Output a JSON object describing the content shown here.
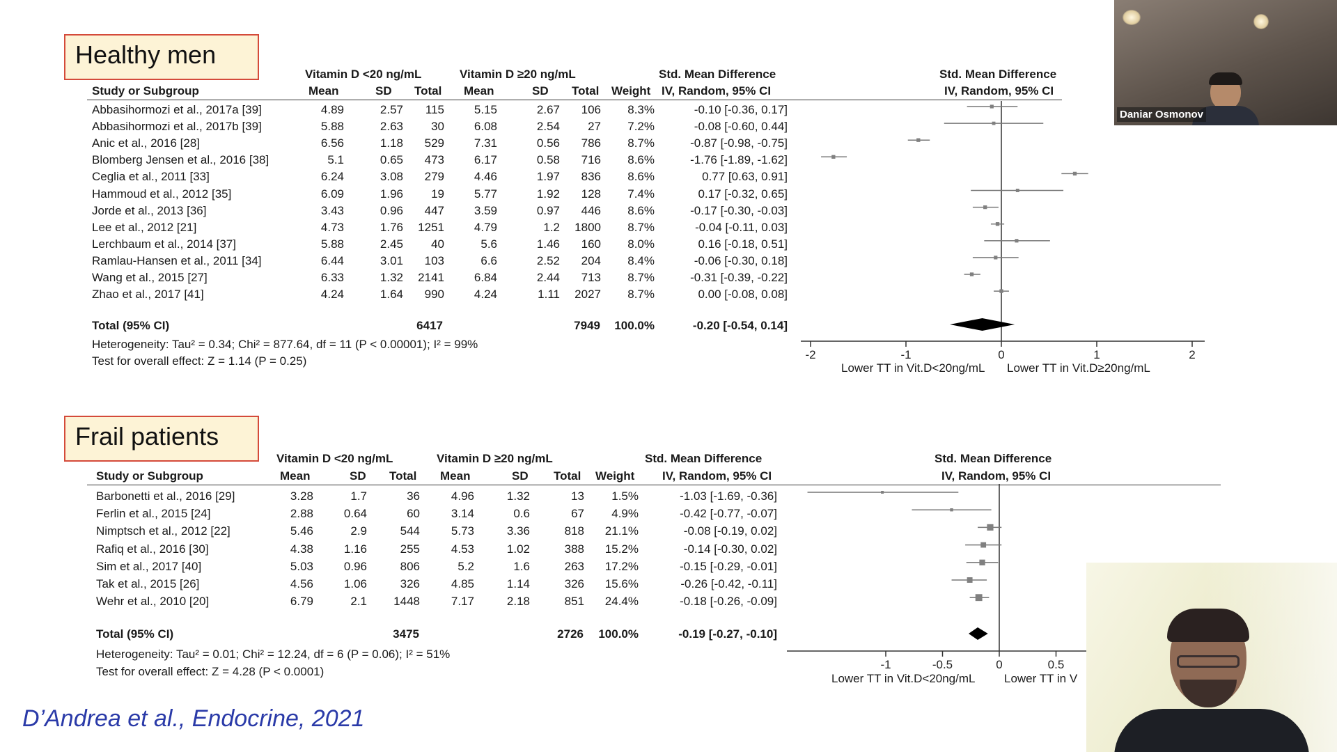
{
  "participant_top": {
    "name": "Daniar Osmonov"
  },
  "citation": "D’Andrea et al., Endocrine, 2021",
  "colors": {
    "label_fill": "#fdf3d6",
    "label_border": "#d44a3a",
    "citation": "#2a3aa8",
    "diamond": "#000000",
    "marker": "#808080"
  },
  "panel1": {
    "label": "Healthy men",
    "group1": "Vitamin D <20 ng/mL",
    "group2": "Vitamin D ≥20 ng/mL",
    "smd_title": "Std. Mean Difference",
    "smd_method": "IV, Random, 95% CI",
    "plot_title": "Std. Mean Difference",
    "plot_method": "IV, Random, 95% CI",
    "col_study": "Study or Subgroup",
    "col_mean": "Mean",
    "col_sd": "SD",
    "col_total": "Total",
    "col_weight": "Weight",
    "rows": [
      {
        "study": "Abbasihormozi et al., 2017a [39]",
        "m1": "4.89",
        "sd1": "2.57",
        "n1": "115",
        "m2": "5.15",
        "sd2": "2.67",
        "n2": "106",
        "w": "8.3%",
        "ci": "-0.10 [-0.36, 0.17]"
      },
      {
        "study": "Abbasihormozi et al., 2017b [39]",
        "m1": "5.88",
        "sd1": "2.63",
        "n1": "30",
        "m2": "6.08",
        "sd2": "2.54",
        "n2": "27",
        "w": "7.2%",
        "ci": "-0.08 [-0.60, 0.44]"
      },
      {
        "study": "Anic et al., 2016 [28]",
        "m1": "6.56",
        "sd1": "1.18",
        "n1": "529",
        "m2": "7.31",
        "sd2": "0.56",
        "n2": "786",
        "w": "8.7%",
        "ci": "-0.87 [-0.98, -0.75]"
      },
      {
        "study": "Blomberg Jensen et al., 2016 [38]",
        "m1": "5.1",
        "sd1": "0.65",
        "n1": "473",
        "m2": "6.17",
        "sd2": "0.58",
        "n2": "716",
        "w": "8.6%",
        "ci": "-1.76 [-1.89, -1.62]"
      },
      {
        "study": "Ceglia et al., 2011 [33]",
        "m1": "6.24",
        "sd1": "3.08",
        "n1": "279",
        "m2": "4.46",
        "sd2": "1.97",
        "n2": "836",
        "w": "8.6%",
        "ci": "0.77 [0.63, 0.91]"
      },
      {
        "study": "Hammoud et al., 2012 [35]",
        "m1": "6.09",
        "sd1": "1.96",
        "n1": "19",
        "m2": "5.77",
        "sd2": "1.92",
        "n2": "128",
        "w": "7.4%",
        "ci": "0.17 [-0.32, 0.65]"
      },
      {
        "study": "Jorde et al., 2013 [36]",
        "m1": "3.43",
        "sd1": "0.96",
        "n1": "447",
        "m2": "3.59",
        "sd2": "0.97",
        "n2": "446",
        "w": "8.6%",
        "ci": "-0.17 [-0.30, -0.03]"
      },
      {
        "study": "Lee et al., 2012 [21]",
        "m1": "4.73",
        "sd1": "1.76",
        "n1": "1251",
        "m2": "4.79",
        "sd2": "1.2",
        "n2": "1800",
        "w": "8.7%",
        "ci": "-0.04 [-0.11, 0.03]"
      },
      {
        "study": "Lerchbaum et al., 2014 [37]",
        "m1": "5.88",
        "sd1": "2.45",
        "n1": "40",
        "m2": "5.6",
        "sd2": "1.46",
        "n2": "160",
        "w": "8.0%",
        "ci": "0.16 [-0.18, 0.51]"
      },
      {
        "study": "Ramlau-Hansen et al., 2011 [34]",
        "m1": "6.44",
        "sd1": "3.01",
        "n1": "103",
        "m2": "6.6",
        "sd2": "2.52",
        "n2": "204",
        "w": "8.4%",
        "ci": "-0.06 [-0.30, 0.18]"
      },
      {
        "study": "Wang et al., 2015 [27]",
        "m1": "6.33",
        "sd1": "1.32",
        "n1": "2141",
        "m2": "6.84",
        "sd2": "2.44",
        "n2": "713",
        "w": "8.7%",
        "ci": "-0.31 [-0.39, -0.22]"
      },
      {
        "study": "Zhao et al., 2017 [41]",
        "m1": "4.24",
        "sd1": "1.64",
        "n1": "990",
        "m2": "4.24",
        "sd2": "1.11",
        "n2": "2027",
        "w": "8.7%",
        "ci": "0.00 [-0.08, 0.08]"
      }
    ],
    "total": {
      "label": "Total (95% CI)",
      "n1": "6417",
      "n2": "7949",
      "w": "100.0%",
      "ci": "-0.20 [-0.54, 0.14]"
    },
    "heterogeneity": "Heterogeneity: Tau² = 0.34; Chi² = 877.64, df = 11 (P < 0.00001); I² = 99%",
    "overall": "Test for overall effect: Z = 1.14 (P = 0.25)",
    "favours_left": "Lower TT in Vit.D<20ng/mL",
    "favours_right": "Lower TT in Vit.D≥20ng/mL"
  },
  "panel2": {
    "label": "Frail patients",
    "group1": "Vitamin D <20 ng/mL",
    "group2": "Vitamin D ≥20 ng/mL",
    "smd_title": "Std. Mean Difference",
    "smd_method": "IV, Random, 95% CI",
    "plot_title": "Std. Mean Difference",
    "plot_method": "IV, Random, 95% CI",
    "col_study": "Study or Subgroup",
    "col_mean": "Mean",
    "col_sd": "SD",
    "col_total": "Total",
    "col_weight": "Weight",
    "rows": [
      {
        "study": "Barbonetti et al., 2016 [29]",
        "m1": "3.28",
        "sd1": "1.7",
        "n1": "36",
        "m2": "4.96",
        "sd2": "1.32",
        "n2": "13",
        "w": "1.5%",
        "ci": "-1.03 [-1.69, -0.36]"
      },
      {
        "study": "Ferlin et al., 2015 [24]",
        "m1": "2.88",
        "sd1": "0.64",
        "n1": "60",
        "m2": "3.14",
        "sd2": "0.6",
        "n2": "67",
        "w": "4.9%",
        "ci": "-0.42 [-0.77, -0.07]"
      },
      {
        "study": "Nimptsch et al., 2012 [22]",
        "m1": "5.46",
        "sd1": "2.9",
        "n1": "544",
        "m2": "5.73",
        "sd2": "3.36",
        "n2": "818",
        "w": "21.1%",
        "ci": "-0.08 [-0.19, 0.02]"
      },
      {
        "study": "Rafiq et al., 2016 [30]",
        "m1": "4.38",
        "sd1": "1.16",
        "n1": "255",
        "m2": "4.53",
        "sd2": "1.02",
        "n2": "388",
        "w": "15.2%",
        "ci": "-0.14 [-0.30, 0.02]"
      },
      {
        "study": "Sim et al., 2017 [40]",
        "m1": "5.03",
        "sd1": "0.96",
        "n1": "806",
        "m2": "5.2",
        "sd2": "1.6",
        "n2": "263",
        "w": "17.2%",
        "ci": "-0.15 [-0.29, -0.01]"
      },
      {
        "study": "Tak et al., 2015 [26]",
        "m1": "4.56",
        "sd1": "1.06",
        "n1": "326",
        "m2": "4.85",
        "sd2": "1.14",
        "n2": "326",
        "w": "15.6%",
        "ci": "-0.26 [-0.42, -0.11]"
      },
      {
        "study": "Wehr et al., 2010 [20]",
        "m1": "6.79",
        "sd1": "2.1",
        "n1": "1448",
        "m2": "7.17",
        "sd2": "2.18",
        "n2": "851",
        "w": "24.4%",
        "ci": "-0.18 [-0.26, -0.09]"
      }
    ],
    "total": {
      "label": "Total (95% CI)",
      "n1": "3475",
      "n2": "2726",
      "w": "100.0%",
      "ci": "-0.19 [-0.27, -0.10]"
    },
    "heterogeneity": "Heterogeneity: Tau² = 0.01; Chi² = 12.24, df = 6 (P = 0.06); I² = 51%",
    "overall": "Test for overall effect: Z = 4.28 (P < 0.0001)",
    "favours_left": "Lower TT in Vit.D<20ng/mL",
    "favours_right": "Lower TT in V"
  },
  "chart_data": [
    {
      "type": "scatter",
      "title": "Std. Mean Difference",
      "subtitle": "IV, Random, 95% CI",
      "xlim": [
        -2,
        2
      ],
      "xticks": [
        "-2",
        "-1",
        "0",
        "1",
        "2"
      ],
      "xtick_values": [
        -2,
        -1,
        0,
        1,
        2
      ],
      "studies": [
        {
          "est": -0.1,
          "lo": -0.36,
          "hi": 0.17,
          "w": 8.3
        },
        {
          "est": -0.08,
          "lo": -0.6,
          "hi": 0.44,
          "w": 7.2
        },
        {
          "est": -0.87,
          "lo": -0.98,
          "hi": -0.75,
          "w": 8.7
        },
        {
          "est": -1.76,
          "lo": -1.89,
          "hi": -1.62,
          "w": 8.6
        },
        {
          "est": 0.77,
          "lo": 0.63,
          "hi": 0.91,
          "w": 8.6
        },
        {
          "est": 0.17,
          "lo": -0.32,
          "hi": 0.65,
          "w": 7.4
        },
        {
          "est": -0.17,
          "lo": -0.3,
          "hi": -0.03,
          "w": 8.6
        },
        {
          "est": -0.04,
          "lo": -0.11,
          "hi": 0.03,
          "w": 8.7
        },
        {
          "est": 0.16,
          "lo": -0.18,
          "hi": 0.51,
          "w": 8.0
        },
        {
          "est": -0.06,
          "lo": -0.3,
          "hi": 0.18,
          "w": 8.4
        },
        {
          "est": -0.31,
          "lo": -0.39,
          "hi": -0.22,
          "w": 8.7
        },
        {
          "est": 0.0,
          "lo": -0.08,
          "hi": 0.08,
          "w": 8.7
        }
      ],
      "total": {
        "est": -0.2,
        "lo": -0.54,
        "hi": 0.14
      }
    },
    {
      "type": "scatter",
      "title": "Std. Mean Difference",
      "subtitle": "IV, Random, 95% CI",
      "xlim": [
        -2,
        2
      ],
      "xticks": [
        "-1",
        "-0.5",
        "0",
        "0.5"
      ],
      "xtick_values": [
        -1,
        -0.5,
        0,
        0.5
      ],
      "studies": [
        {
          "est": -1.03,
          "lo": -1.69,
          "hi": -0.36,
          "w": 1.5
        },
        {
          "est": -0.42,
          "lo": -0.77,
          "hi": -0.07,
          "w": 4.9
        },
        {
          "est": -0.08,
          "lo": -0.19,
          "hi": 0.02,
          "w": 21.1
        },
        {
          "est": -0.14,
          "lo": -0.3,
          "hi": 0.02,
          "w": 15.2
        },
        {
          "est": -0.15,
          "lo": -0.29,
          "hi": -0.01,
          "w": 17.2
        },
        {
          "est": -0.26,
          "lo": -0.42,
          "hi": -0.11,
          "w": 15.6
        },
        {
          "est": -0.18,
          "lo": -0.26,
          "hi": -0.09,
          "w": 24.4
        }
      ],
      "total": {
        "est": -0.19,
        "lo": -0.27,
        "hi": -0.1
      }
    }
  ]
}
